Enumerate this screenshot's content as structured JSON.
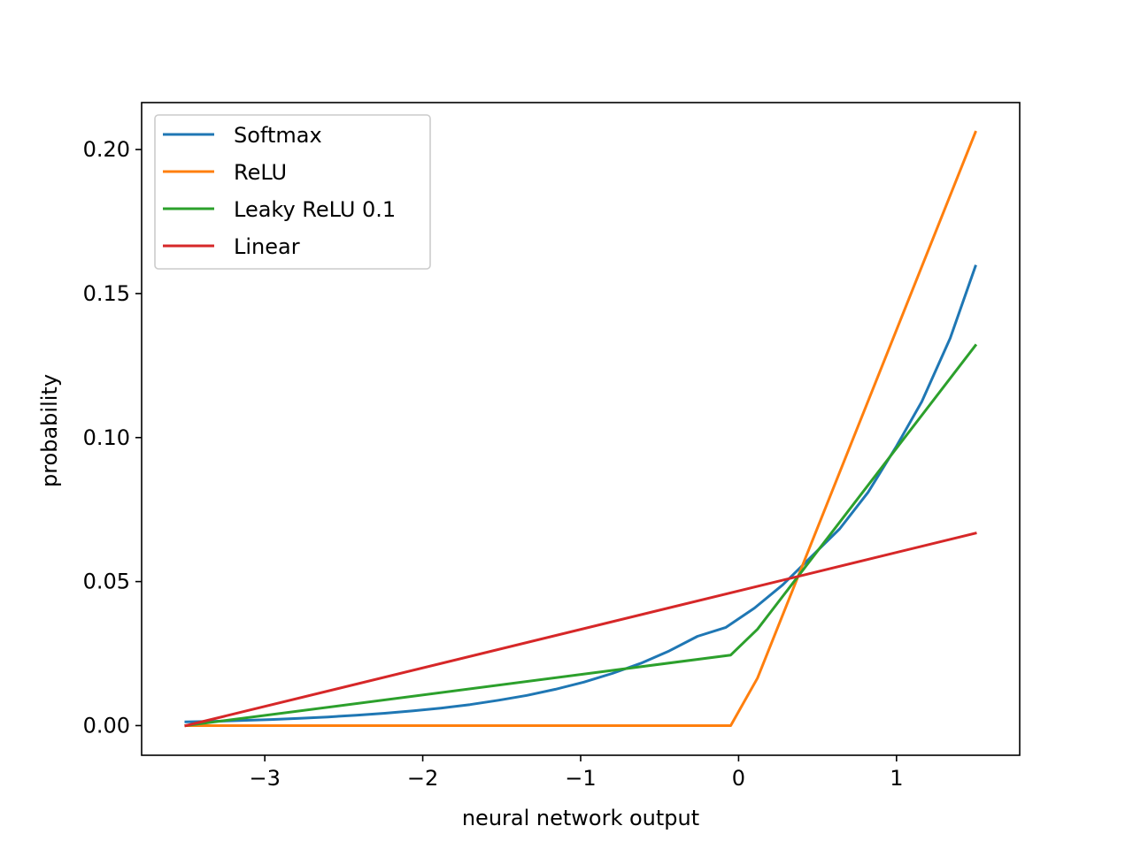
{
  "chart_data": {
    "type": "line",
    "title": "",
    "xlabel": "neural network output",
    "ylabel": "probability",
    "xlim": [
      -3.78,
      1.78
    ],
    "ylim": [
      -0.0103,
      0.2163
    ],
    "grid": false,
    "legend_position": "top-left",
    "x_ticks": [
      {
        "value": -3,
        "label": "−3"
      },
      {
        "value": -2,
        "label": "−2"
      },
      {
        "value": -1,
        "label": "−1"
      },
      {
        "value": 0,
        "label": "0"
      },
      {
        "value": 1,
        "label": "1"
      }
    ],
    "y_ticks": [
      {
        "value": 0.0,
        "label": "0.00"
      },
      {
        "value": 0.05,
        "label": "0.05"
      },
      {
        "value": 0.1,
        "label": "0.10"
      },
      {
        "value": 0.15,
        "label": "0.15"
      },
      {
        "value": 0.2,
        "label": "0.20"
      }
    ],
    "series": [
      {
        "name": "Softmax",
        "color": "#1f77b4",
        "x": [
          -3.5,
          -3.32,
          -3.14,
          -2.96,
          -2.78,
          -2.6,
          -2.42,
          -2.24,
          -2.06,
          -1.88,
          -1.7,
          -1.52,
          -1.34,
          -1.16,
          -0.98,
          -0.8,
          -0.62,
          -0.44,
          -0.26,
          -0.08,
          0.1,
          0.28,
          0.46,
          0.64,
          0.82,
          1.0,
          1.16,
          1.34,
          1.5
        ],
        "y": [
          0.0013,
          0.0015,
          0.0018,
          0.0021,
          0.0025,
          0.003,
          0.0036,
          0.0043,
          0.0051,
          0.0061,
          0.0073,
          0.0088,
          0.0105,
          0.0126,
          0.0151,
          0.0181,
          0.0216,
          0.0259,
          0.031,
          0.0341,
          0.0408,
          0.0489,
          0.0586,
          0.0683,
          0.081,
          0.097,
          0.1125,
          0.1345,
          0.1595
        ]
      },
      {
        "name": "ReLU",
        "color": "#ff7f0e",
        "x": [
          -3.5,
          -0.05,
          0.12,
          1.5
        ],
        "y": [
          0.0,
          0.0,
          0.0165,
          0.206
        ]
      },
      {
        "name": "Leaky ReLU 0.1",
        "color": "#2ca02c",
        "x": [
          -3.5,
          -0.05,
          0.12,
          1.5
        ],
        "y": [
          0.0,
          0.0245,
          0.0335,
          0.132
        ]
      },
      {
        "name": "Linear",
        "color": "#d62728",
        "x": [
          -3.5,
          1.5
        ],
        "y": [
          0.0,
          0.0668
        ]
      }
    ]
  }
}
